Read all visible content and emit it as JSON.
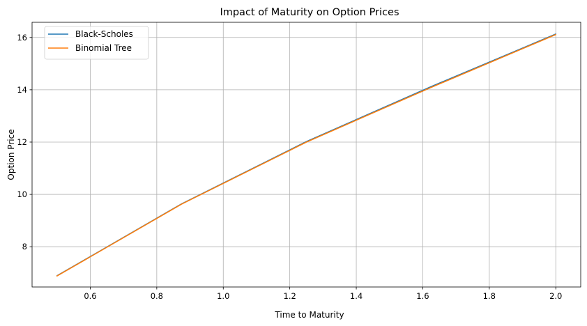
{
  "chart_data": {
    "type": "line",
    "title": "Impact of Maturity on Option Prices",
    "xlabel": "Time to Maturity",
    "ylabel": "Option Price",
    "xlim": [
      0.425,
      2.075
    ],
    "ylim": [
      6.46,
      16.58
    ],
    "xticks": [
      0.6,
      0.8,
      1.0,
      1.2,
      1.4,
      1.6,
      1.8,
      2.0
    ],
    "xtick_labels": [
      "0.6",
      "0.8",
      "1.0",
      "1.2",
      "1.4",
      "1.6",
      "1.8",
      "2.0"
    ],
    "yticks": [
      8,
      10,
      12,
      14,
      16
    ],
    "ytick_labels": [
      "8",
      "10",
      "12",
      "14",
      "16"
    ],
    "grid": true,
    "legend_position": "top-left",
    "series": [
      {
        "name": "Black-Scholes",
        "color": "#1f77b4",
        "x": [
          0.5,
          0.875,
          1.25,
          1.625,
          2.0
        ],
        "y": [
          6.89,
          9.64,
          12.02,
          14.12,
          16.13
        ]
      },
      {
        "name": "Binomial Tree",
        "color": "#ff7f0e",
        "x": [
          0.5,
          0.875,
          1.25,
          1.625,
          2.0
        ],
        "y": [
          6.88,
          9.63,
          12.0,
          14.09,
          16.11
        ]
      }
    ]
  }
}
